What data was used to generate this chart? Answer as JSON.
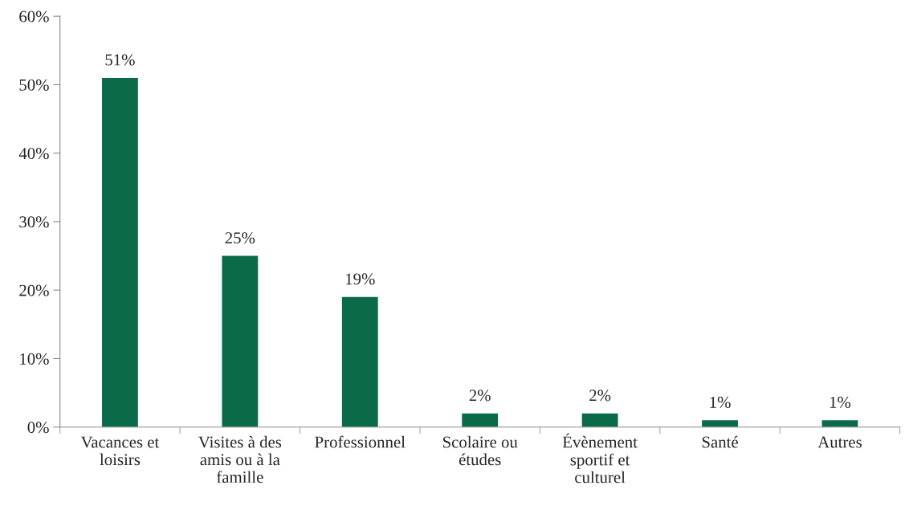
{
  "chart_data": {
    "type": "bar",
    "categories": [
      "Vacances et\nloisirs",
      "Visites à des\namis ou à la\nfamille",
      "Professionnel",
      "Scolaire ou\nétudes",
      "Évènement\nsportif et\nculturel",
      "Santé",
      "Autres"
    ],
    "values": [
      51,
      25,
      19,
      2,
      2,
      1,
      1
    ],
    "value_labels": [
      "51%",
      "25%",
      "19%",
      "2%",
      "2%",
      "1%",
      "1%"
    ],
    "color": "#0b6b48",
    "ylim": [
      0,
      60
    ],
    "yticks": [
      {
        "value": 0,
        "label": "0%"
      },
      {
        "value": 10,
        "label": "10%"
      },
      {
        "value": 20,
        "label": "20%"
      },
      {
        "value": 30,
        "label": "30%"
      },
      {
        "value": 40,
        "label": "40%"
      },
      {
        "value": 50,
        "label": "50%"
      },
      {
        "value": 60,
        "label": "60%"
      }
    ],
    "grid": false,
    "legend": false
  }
}
